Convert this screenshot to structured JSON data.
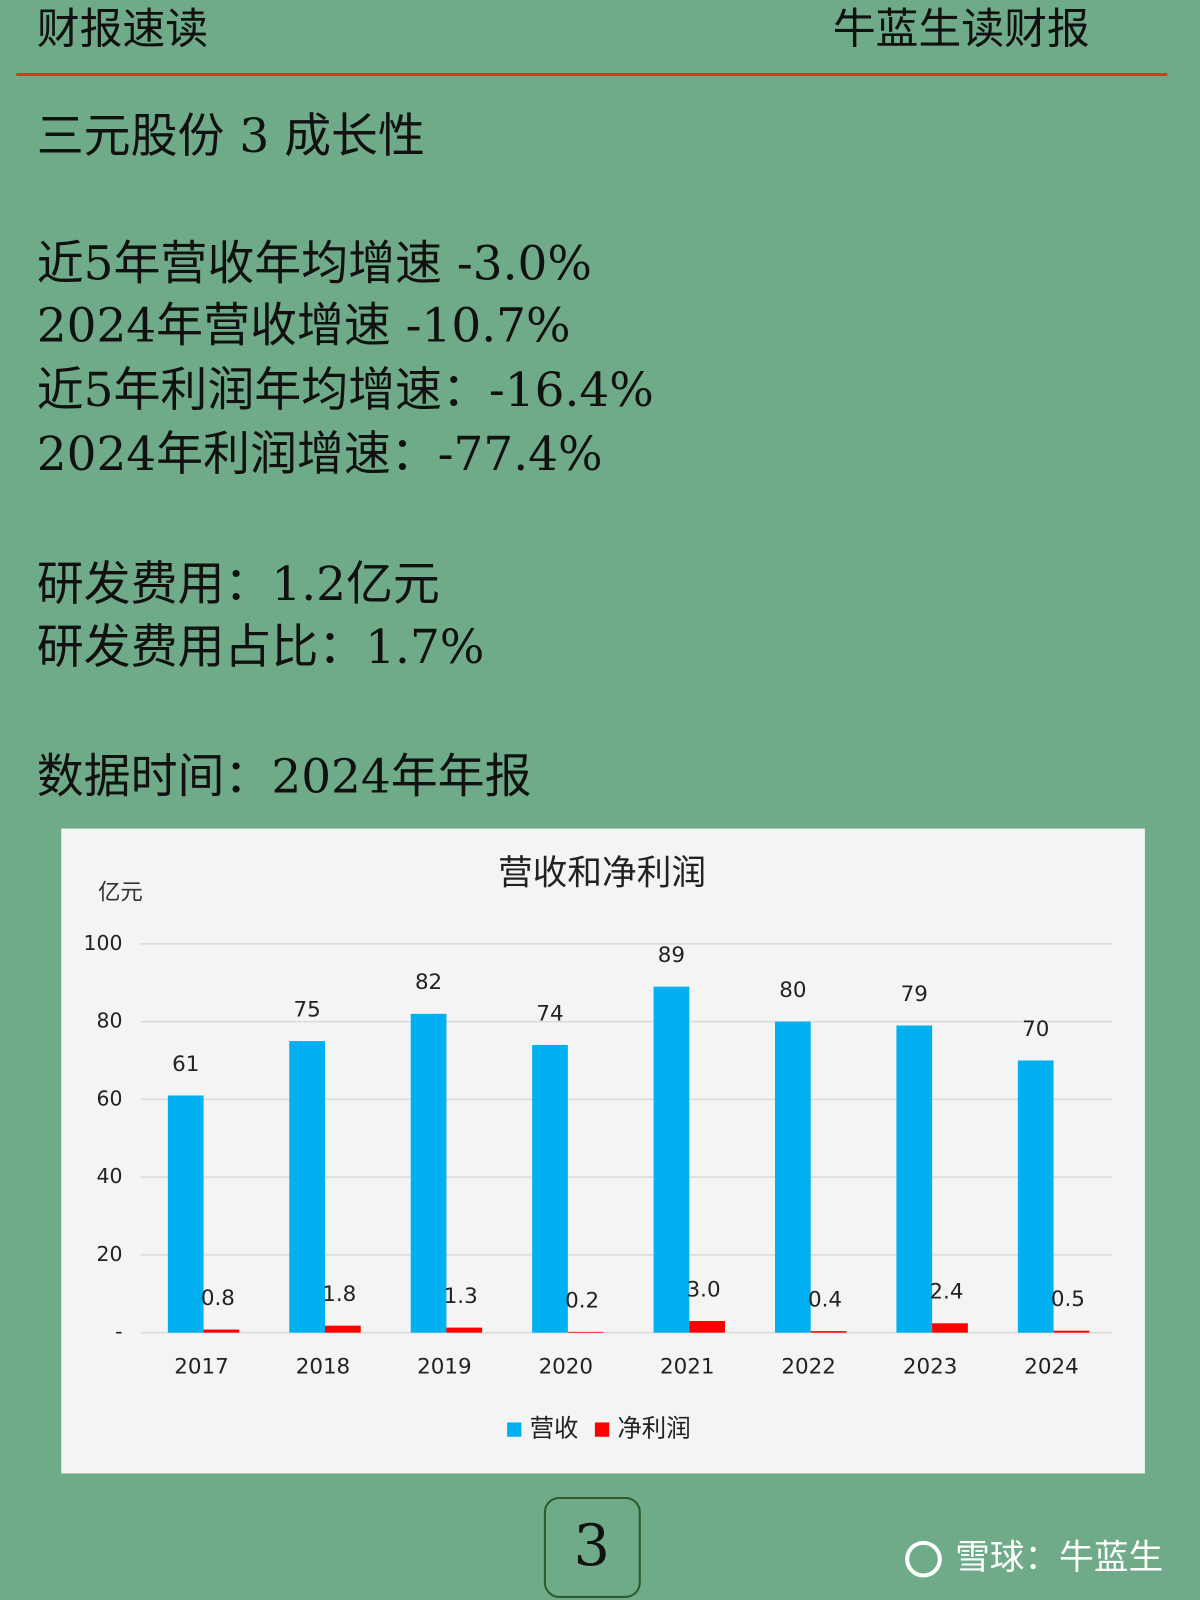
{
  "header": {
    "left": "财报速读",
    "right": "牛蓝生读财报"
  },
  "title": "三元股份 3 成长性",
  "lines": [
    "近5年营收年均增速 -3.0%",
    "2024年营收增速 -10.7%",
    "近5年利润年均增速：-16.4%",
    "2024年利润增速：-77.4%",
    "研发费用：1.2亿元",
    "研发费用占比：1.7%",
    "数据时间：2024年年报"
  ],
  "chart_data": {
    "type": "bar",
    "title": "营收和净利润",
    "y_label": "亿元",
    "categories": [
      "2017",
      "2018",
      "2019",
      "2020",
      "2021",
      "2022",
      "2023",
      "2024"
    ],
    "series": [
      {
        "name": "营收",
        "color": "#00b0f0",
        "values": [
          61,
          75,
          82,
          74,
          89,
          80,
          79,
          70
        ]
      },
      {
        "name": "净利润",
        "color": "#ff0000",
        "values": [
          0.8,
          1.8,
          1.3,
          0.2,
          3.0,
          0.4,
          2.4,
          0.5
        ],
        "value_labels": [
          "0.8",
          "1.8",
          "1.3",
          "0.2",
          "3.0",
          "0.4",
          "2.4",
          "0.5"
        ]
      }
    ],
    "ylim": [
      0,
      100
    ],
    "yticks": [
      {
        "value": 0,
        "label": "-"
      },
      20,
      40,
      60,
      80,
      100
    ],
    "grid": true,
    "legend": "bottom"
  },
  "page_number": "3",
  "watermark": "雪球：牛蓝生"
}
